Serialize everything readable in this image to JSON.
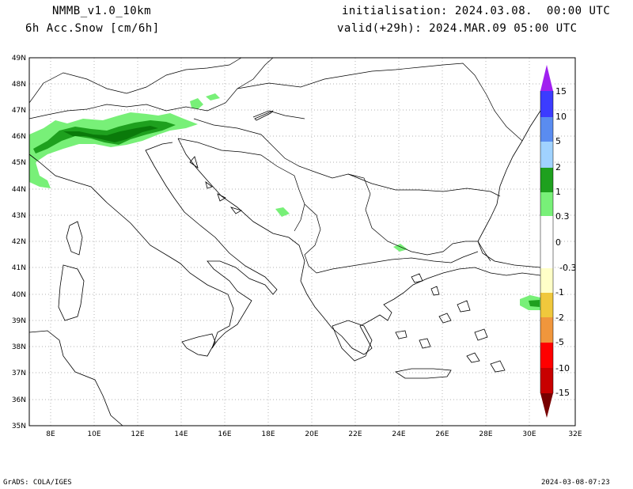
{
  "header": {
    "model": "NMMB_v1.0_10km",
    "variable": "6h Acc.Snow [cm/6h]",
    "init": "initialisation: 2024.03.08.  00:00 UTC",
    "valid": "valid(+29h): 2024.MAR.09 05:00 UTC"
  },
  "axes": {
    "lat_labels": [
      "49N",
      "48N",
      "47N",
      "46N",
      "45N",
      "44N",
      "43N",
      "42N",
      "41N",
      "40N",
      "39N",
      "38N",
      "37N",
      "36N",
      "35N"
    ],
    "lon_labels": [
      "8E",
      "10E",
      "12E",
      "14E",
      "16E",
      "18E",
      "20E",
      "22E",
      "24E",
      "26E",
      "28E",
      "30E",
      "32E"
    ]
  },
  "colorbar": {
    "labels": [
      "15",
      "10",
      "5",
      "2",
      "1",
      "0.3",
      "0",
      "-0.3",
      "-1",
      "-2",
      "-5",
      "-10",
      "-15"
    ],
    "colors": {
      "top_arrow": "#a020f0",
      "c15": "#3c3cff",
      "c10": "#5a8cf0",
      "c5": "#a0d2ff",
      "c2": "#1ea01e",
      "c1": "#78f078",
      "n03": "#ffffc8",
      "n1": "#f0c83c",
      "n2": "#f0963c",
      "n5": "#ff0000",
      "n10": "#c80000",
      "bottom_arrow": "#780000"
    }
  },
  "footer": {
    "left": "GrADS: COLA/IGES",
    "right": "2024-03-08-07:23"
  }
}
